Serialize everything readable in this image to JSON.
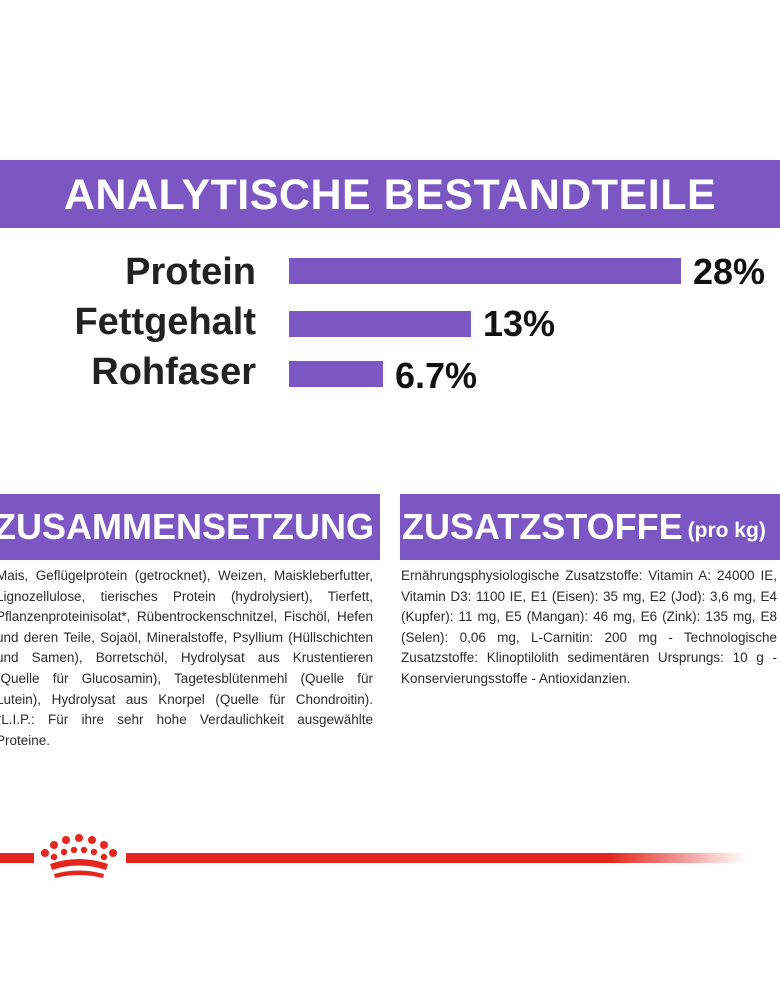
{
  "analysis": {
    "title": "ANALYTISCHE BESTANDTEILE",
    "rows": [
      {
        "label": "Protein",
        "value_text": "28%",
        "value": 28
      },
      {
        "label": "Fettgehalt",
        "value_text": "13%",
        "value": 13
      },
      {
        "label": "Rohfaser",
        "value_text": "6.7%",
        "value": 6.7
      }
    ]
  },
  "composition": {
    "title": "ZUSAMMENSETZUNG",
    "text": "Mais, Geflügelprotein (getrocknet), Weizen, Maiskleberfutter, Lignozellulose, tierisches Protein (hydrolysiert), Tierfett, Pflanzenproteinisolat*, Rübentrockenschnitzel, Fischöl, Hefen und deren Teile, Sojaöl, Mineralstoffe, Psyllium (Hüllschichten und Samen), Borretschöl, Hydrolysat aus Krustentieren (Quelle für Glucosamin), Tagetesblütenmehl (Quelle für Lutein), Hydrolysat aus Knorpel (Quelle für Chondroitin). *L.I.P.: Für ihre sehr hohe Verdaulichkeit ausgewählte Proteine."
  },
  "additives": {
    "title": "ZUSATZSTOFFE",
    "title_unit": "(pro kg)",
    "text": "Ernährungsphysiologische Zusatzstoffe: Vitamin A: 24000 IE, Vitamin D3: 1100 IE, E1 (Eisen): 35 mg, E2 (Jod): 3,6 mg, E4 (Kupfer): 11 mg, E5 (Mangan): 46 mg, E6 (Zink): 135 mg, E8 (Selen): 0,06 mg, L-Carnitin: 200 mg - Technologische Zusatzstoffe: Klinoptilolith sedimentären Ursprungs: 10 g - Konservierungsstoffe - Antioxidanzien."
  },
  "colors": {
    "brand_purple": "#7c57c4",
    "brand_red": "#e4261e"
  },
  "icons": {
    "logo": "royal-canin-crown-icon"
  }
}
